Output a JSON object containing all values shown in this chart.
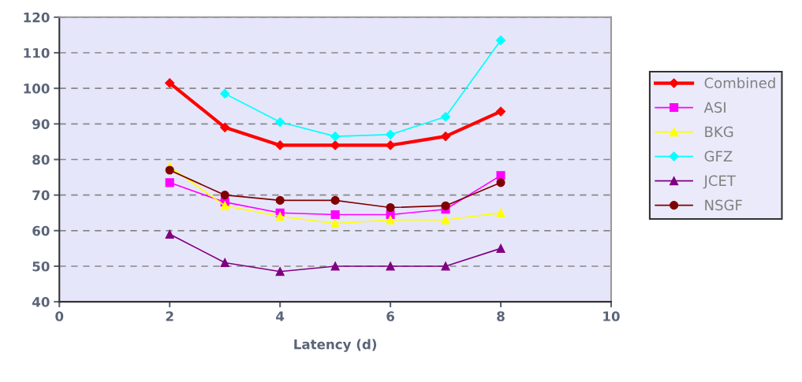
{
  "chart_data": {
    "type": "line",
    "xlabel": "Latency (d)",
    "x": [
      2,
      3,
      4,
      5,
      6,
      7,
      8
    ],
    "xlim": [
      0,
      10
    ],
    "xticks": [
      0,
      2,
      4,
      6,
      8,
      10
    ],
    "ylim": [
      40,
      120
    ],
    "yticks": [
      40,
      50,
      60,
      70,
      80,
      90,
      100,
      110,
      120
    ],
    "grid": "y",
    "legend": "right",
    "series": [
      {
        "name": "Combined",
        "color": "#ff0000",
        "marker": "diamond",
        "values": [
          101.5,
          89,
          84,
          84,
          84,
          86.5,
          93.5
        ]
      },
      {
        "name": "ASI",
        "color": "#ff00ff",
        "marker": "square",
        "values": [
          73.5,
          68,
          65,
          64.5,
          64.5,
          66,
          75.5
        ]
      },
      {
        "name": "BKG",
        "color": "#ffff00",
        "marker": "triangle",
        "values": [
          78,
          67,
          64,
          62,
          63,
          63,
          65
        ]
      },
      {
        "name": "GFZ",
        "color": "#00ffff",
        "marker": "diamond",
        "values": [
          null,
          98.5,
          90.5,
          86.5,
          87,
          92,
          113.5
        ]
      },
      {
        "name": "JCET",
        "color": "#800080",
        "marker": "triangle",
        "values": [
          59,
          51,
          48.5,
          50,
          50,
          50,
          55
        ]
      },
      {
        "name": "NSGF",
        "color": "#800000",
        "marker": "circle",
        "values": [
          77,
          70,
          68.5,
          68.5,
          66.5,
          67,
          73.5
        ]
      }
    ]
  }
}
